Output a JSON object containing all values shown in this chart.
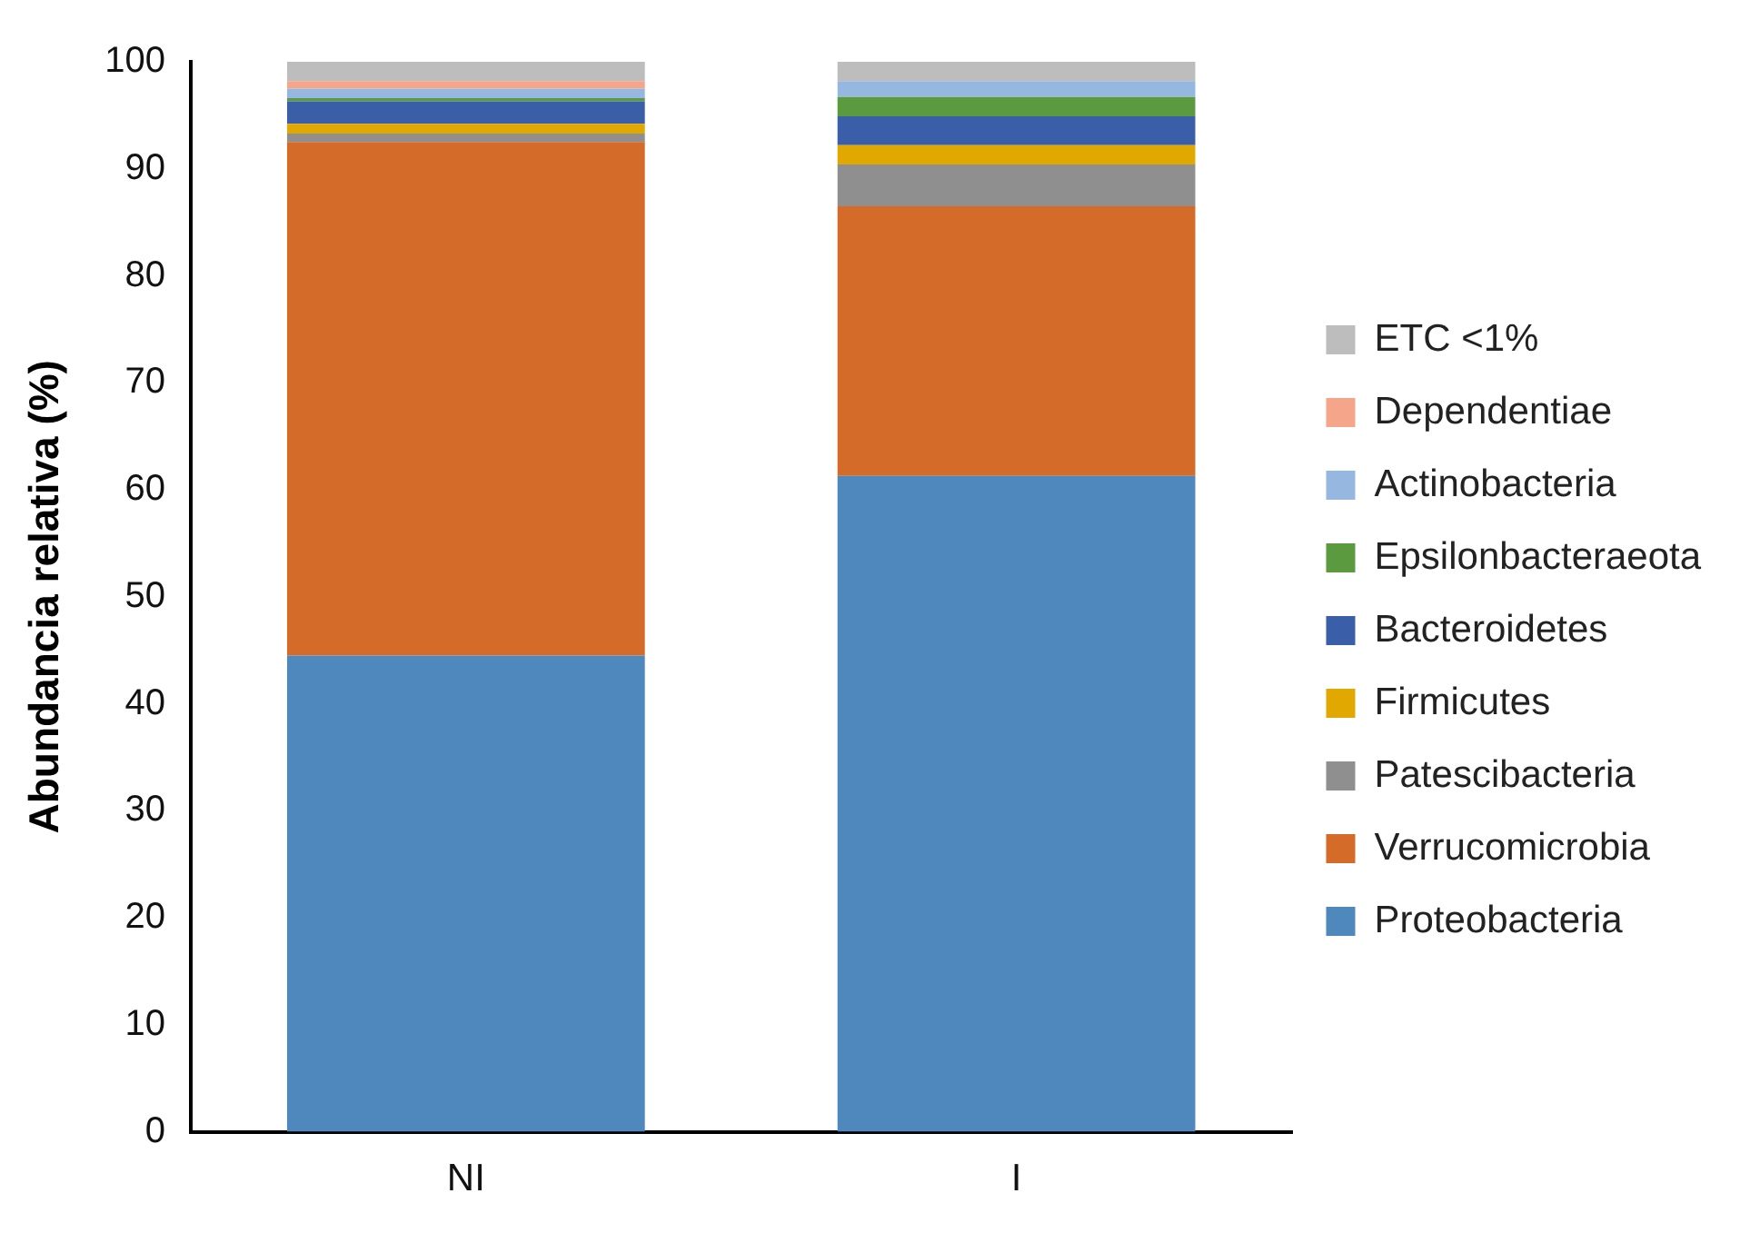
{
  "chart_data": {
    "type": "bar",
    "stacked": true,
    "ylabel": "Abundancia relativa (%)",
    "categories": [
      "NI",
      "I"
    ],
    "ylim": [
      0,
      100
    ],
    "yticks": [
      0,
      10,
      20,
      30,
      40,
      50,
      60,
      70,
      80,
      90,
      100
    ],
    "grid": false,
    "legend": "right",
    "series": [
      {
        "name": "Proteobacteria",
        "color": "#4e88bd",
        "values": [
          44.5,
          61.3
        ]
      },
      {
        "name": "Verrucomicrobia",
        "color": "#d46b28",
        "values": [
          48.0,
          25.2
        ]
      },
      {
        "name": "Patescibacteria",
        "color": "#8f8f8f",
        "values": [
          0.8,
          3.9
        ]
      },
      {
        "name": "Firmicutes",
        "color": "#e0a800",
        "values": [
          0.9,
          1.8
        ]
      },
      {
        "name": "Bacteroidetes",
        "color": "#3a5fa8",
        "values": [
          2.1,
          2.7
        ]
      },
      {
        "name": "Epsilonbacteraeota",
        "color": "#5b9a3e",
        "values": [
          0.3,
          1.8
        ]
      },
      {
        "name": "Actinobacteria",
        "color": "#96b8e0",
        "values": [
          0.9,
          1.5
        ]
      },
      {
        "name": "Dependentiae",
        "color": "#f4a58a",
        "values": [
          0.7,
          0
        ]
      },
      {
        "name": "ETC <1%",
        "color": "#bdbdbd",
        "values": [
          1.8,
          1.8
        ]
      }
    ]
  }
}
